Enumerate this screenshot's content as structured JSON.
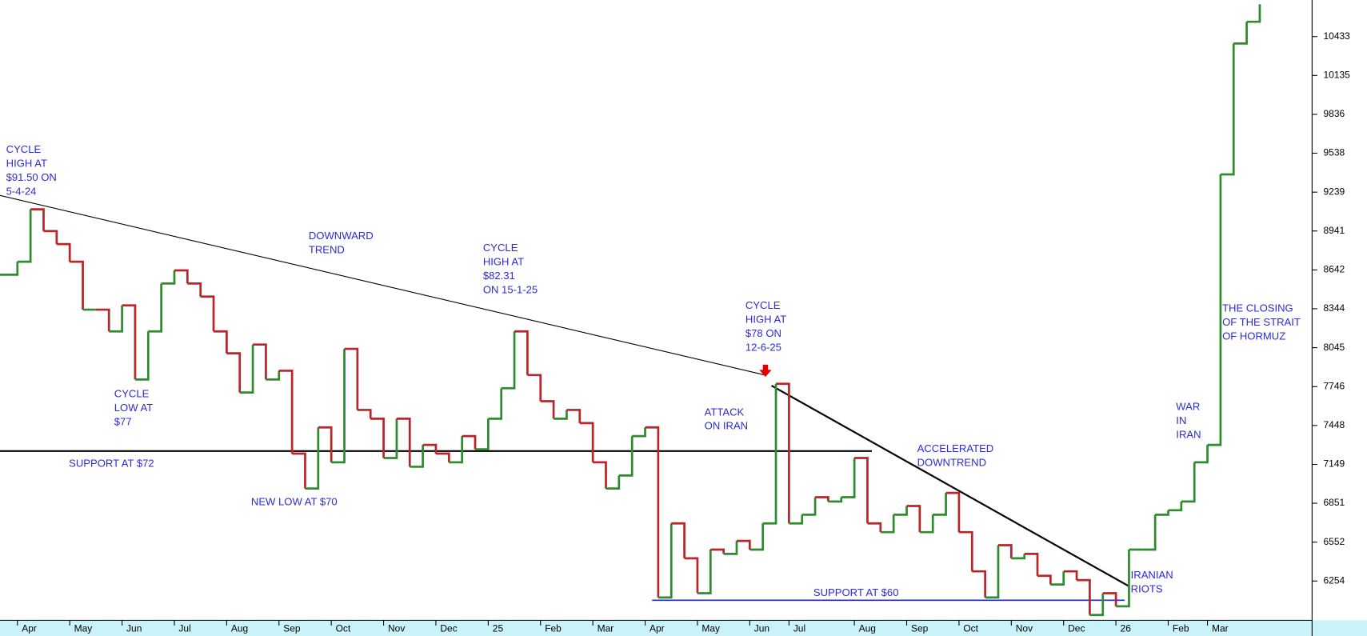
{
  "chart_data": {
    "type": "step",
    "categories": [
      null,
      "Apr",
      null,
      null,
      null,
      "May",
      null,
      null,
      null,
      "Jun",
      null,
      null,
      null,
      "Jul",
      null,
      null,
      null,
      "Aug",
      null,
      null,
      null,
      "Sep",
      null,
      null,
      null,
      "Oct",
      null,
      null,
      null,
      "Nov",
      null,
      null,
      null,
      "Dec",
      null,
      null,
      null,
      "25",
      null,
      null,
      null,
      "Feb",
      null,
      null,
      null,
      "Mar",
      null,
      null,
      null,
      "Apr",
      null,
      null,
      null,
      "May",
      null,
      null,
      null,
      "Jun",
      null,
      null,
      "Jul",
      null,
      null,
      null,
      null,
      "Aug",
      null,
      null,
      null,
      "Sep",
      null,
      null,
      null,
      "Oct",
      null,
      null,
      null,
      "Nov",
      null,
      null,
      null,
      "Dec",
      null,
      null,
      null,
      "26",
      null,
      null,
      null,
      "Feb",
      null,
      null,
      "Mar",
      null,
      null,
      null,
      null
    ],
    "values": [
      8605,
      8705,
      9107,
      8940,
      8840,
      8705,
      8337,
      8337,
      8170,
      8370,
      7801,
      8170,
      8538,
      8638,
      8538,
      8437,
      8170,
      8002,
      7701,
      8069,
      7801,
      7868,
      7232,
      6964,
      7433,
      7165,
      8036,
      7567,
      7500,
      7198,
      7500,
      7131,
      7299,
      7232,
      7165,
      7366,
      7265,
      7500,
      7734,
      8170,
      7835,
      7634,
      7500,
      7567,
      7466,
      7165,
      6964,
      7064,
      7366,
      7433,
      6127,
      6696,
      6428,
      6160,
      6495,
      6462,
      6562,
      6495,
      6696,
      7768,
      6696,
      6763,
      6897,
      6864,
      6897,
      7198,
      6696,
      6629,
      6763,
      6830,
      6629,
      6763,
      6930,
      6629,
      6328,
      6127,
      6529,
      6428,
      6462,
      6294,
      6227,
      6328,
      6261,
      5993,
      6160,
      6060,
      6495,
      6495,
      6763,
      6797,
      6864,
      7165,
      7299,
      9375,
      10380,
      10547,
      10681
    ],
    "up_color": "#2e8b2e",
    "down_color": "#b8252a",
    "ylim": [
      5959,
      10714
    ],
    "yticks": [
      10433,
      10135,
      9836,
      9538,
      9239,
      8941,
      8642,
      8344,
      8045,
      7746,
      7448,
      7149,
      6851,
      6552,
      6254
    ],
    "annotations": [
      {
        "lines": [
          "CYCLE",
          "HIGH AT",
          "$91.50 ON",
          "5-4-24"
        ]
      },
      {
        "lines": [
          "DOWNWARD",
          "TREND"
        ]
      },
      {
        "lines": [
          "CYCLE",
          "HIGH AT",
          "$82.31",
          "ON 15-1-25"
        ]
      },
      {
        "lines": [
          "CYCLE",
          "LOW AT",
          "$77"
        ]
      },
      {
        "lines": [
          "SUPPORT AT $72"
        ]
      },
      {
        "lines": [
          "NEW LOW AT $70"
        ]
      },
      {
        "lines": [
          "CYCLE",
          "HIGH AT",
          "$78 ON",
          "12-6-25"
        ]
      },
      {
        "lines": [
          "ATTACK",
          "ON IRAN"
        ]
      },
      {
        "lines": [
          "ACCELERATED",
          "DOWNTREND"
        ]
      },
      {
        "lines": [
          "SUPPORT AT $60"
        ]
      },
      {
        "lines": [
          "IRANIAN",
          "RIOTS"
        ]
      },
      {
        "lines": [
          "WAR",
          "IN",
          "IRAN"
        ]
      },
      {
        "lines": [
          "THE CLOSING",
          "OF THE STRAIT",
          "OF HORMUZ"
        ]
      }
    ]
  }
}
